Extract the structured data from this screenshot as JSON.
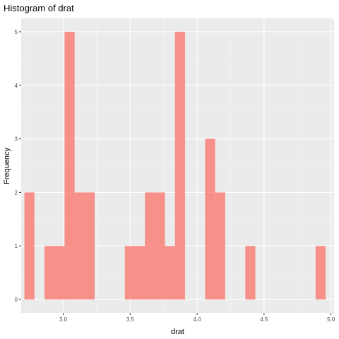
{
  "chart_data": {
    "type": "bar",
    "title": "Histogram of drat",
    "xlabel": "drat",
    "ylabel": "Frequency",
    "xlim": [
      2.686,
      5.023
    ],
    "ylim": [
      -0.25,
      5.25
    ],
    "x_ticks": [
      3.0,
      3.5,
      4.0,
      4.5,
      5.0
    ],
    "x_tick_labels": [
      "3.0",
      "3.5",
      "4.0",
      "4.5",
      "5.0"
    ],
    "y_ticks": [
      0,
      1,
      2,
      3,
      4,
      5
    ],
    "y_tick_labels": [
      "0",
      "1",
      "2",
      "3",
      "4",
      "5"
    ],
    "bins": [
      {
        "x0": 2.71,
        "x1": 2.785,
        "count": 2
      },
      {
        "x0": 2.785,
        "x1": 2.86,
        "count": 0
      },
      {
        "x0": 2.86,
        "x1": 2.935,
        "count": 1
      },
      {
        "x0": 2.935,
        "x1": 3.01,
        "count": 1
      },
      {
        "x0": 3.01,
        "x1": 3.085,
        "count": 5
      },
      {
        "x0": 3.085,
        "x1": 3.16,
        "count": 2
      },
      {
        "x0": 3.16,
        "x1": 3.235,
        "count": 2
      },
      {
        "x0": 3.235,
        "x1": 3.31,
        "count": 0
      },
      {
        "x0": 3.31,
        "x1": 3.385,
        "count": 0
      },
      {
        "x0": 3.385,
        "x1": 3.46,
        "count": 0
      },
      {
        "x0": 3.46,
        "x1": 3.535,
        "count": 1
      },
      {
        "x0": 3.535,
        "x1": 3.61,
        "count": 1
      },
      {
        "x0": 3.61,
        "x1": 3.685,
        "count": 2
      },
      {
        "x0": 3.685,
        "x1": 3.76,
        "count": 2
      },
      {
        "x0": 3.76,
        "x1": 3.835,
        "count": 1
      },
      {
        "x0": 3.835,
        "x1": 3.91,
        "count": 5
      },
      {
        "x0": 3.91,
        "x1": 3.985,
        "count": 0
      },
      {
        "x0": 3.985,
        "x1": 4.06,
        "count": 0
      },
      {
        "x0": 4.06,
        "x1": 4.135,
        "count": 3
      },
      {
        "x0": 4.135,
        "x1": 4.21,
        "count": 2
      },
      {
        "x0": 4.21,
        "x1": 4.285,
        "count": 0
      },
      {
        "x0": 4.285,
        "x1": 4.36,
        "count": 0
      },
      {
        "x0": 4.36,
        "x1": 4.435,
        "count": 1
      },
      {
        "x0": 4.435,
        "x1": 4.51,
        "count": 0
      },
      {
        "x0": 4.51,
        "x1": 4.585,
        "count": 0
      },
      {
        "x0": 4.585,
        "x1": 4.66,
        "count": 0
      },
      {
        "x0": 4.66,
        "x1": 4.735,
        "count": 0
      },
      {
        "x0": 4.735,
        "x1": 4.81,
        "count": 0
      },
      {
        "x0": 4.81,
        "x1": 4.885,
        "count": 0
      },
      {
        "x0": 4.885,
        "x1": 4.96,
        "count": 1
      }
    ],
    "grid": true,
    "legend": "none",
    "colors": {
      "bar_fill": "#F8766D",
      "panel_background": "#EBEBEB",
      "grid_major": "#FFFFFF",
      "tick_text": "#4D4D4D"
    }
  }
}
